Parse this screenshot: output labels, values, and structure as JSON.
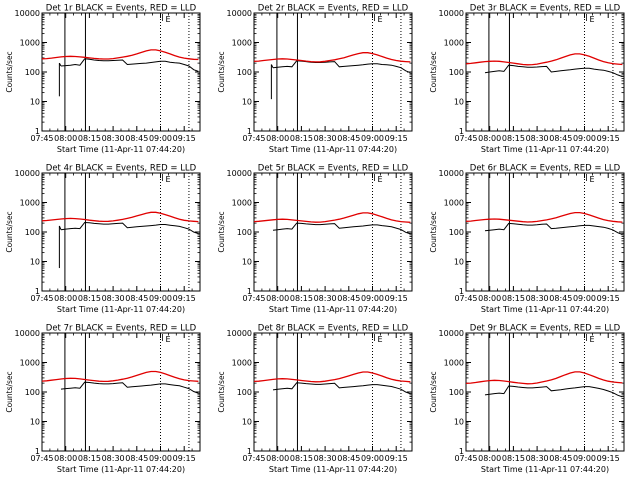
{
  "chart_data": {
    "type": "line",
    "layout": "3x3 grid of small multiples",
    "legend_note": "BLACK = Events, RED = LLD",
    "shared": {
      "xlabel": "Start Time (11-Apr-11 07:44:20)",
      "ylabel": "Counts/sec",
      "yscale": "log",
      "ylim": [
        1,
        10000
      ],
      "ytick_labels": [
        "1",
        "10",
        "100",
        "1000",
        "10000"
      ],
      "xlim_minutes_after_0745": [
        0,
        100
      ],
      "xtick_labels": [
        "07:45",
        "08:00",
        "08:15",
        "08:30",
        "08:45",
        "09:00",
        "09:15"
      ],
      "xtick_minutes_after_0745": [
        0,
        15,
        30,
        45,
        60,
        75,
        90
      ],
      "solid_vertical_lines_min": [
        14.5,
        27.5
      ],
      "dotted_vertical_lines_min": [
        75,
        93
      ],
      "small_marker_label": "E"
    },
    "series_x_minutes": [
      0,
      3,
      6,
      9,
      12,
      15,
      18,
      21,
      24,
      27,
      30,
      33,
      36,
      39,
      42,
      45,
      48,
      51,
      54,
      57,
      60,
      63,
      66,
      69,
      72,
      75,
      78,
      81,
      84,
      87,
      90,
      93,
      96,
      99
    ],
    "panels": [
      {
        "title": "Det 1r  BLACK = Events, RED = LLD",
        "series": [
          {
            "name": "Events",
            "color": "#000000",
            "gap_minutes": [
              11,
              14.5
            ],
            "values": [
              null,
              null,
              null,
              null,
              160,
              165,
              170,
              180,
              170,
              280,
              270,
              255,
              245,
              240,
              240,
              245,
              250,
              255,
              180,
              185,
              190,
              195,
              200,
              210,
              220,
              230,
              230,
              215,
              205,
              200,
              180,
              160,
              120,
              105
            ],
            "drop": {
              "minute": 11,
              "from": 200,
              "to": 15
            }
          },
          {
            "name": "LLD",
            "color": "#e00000",
            "values": [
              280,
              285,
              295,
              310,
              325,
              335,
              340,
              335,
              325,
              315,
              300,
              290,
              280,
              275,
              275,
              285,
              300,
              320,
              340,
              370,
              410,
              460,
              520,
              560,
              560,
              520,
              470,
              410,
              360,
              320,
              295,
              280,
              270,
              265
            ]
          }
        ]
      },
      {
        "title": "Det 2r  BLACK = Events, RED = LLD",
        "series": [
          {
            "name": "Events",
            "color": "#000000",
            "gap_minutes": [
              11,
              14.5
            ],
            "values": [
              null,
              null,
              null,
              null,
              140,
              145,
              150,
              155,
              150,
              240,
              235,
              225,
              215,
              210,
              210,
              215,
              220,
              225,
              150,
              155,
              160,
              165,
              170,
              175,
              185,
              190,
              190,
              180,
              175,
              170,
              155,
              140,
              110,
              95
            ],
            "drop": {
              "minute": 11,
              "from": 180,
              "to": 12
            }
          },
          {
            "name": "LLD",
            "color": "#e00000",
            "values": [
              230,
              235,
              245,
              255,
              265,
              275,
              280,
              275,
              265,
              255,
              245,
              235,
              225,
              220,
              222,
              230,
              245,
              260,
              280,
              305,
              340,
              380,
              420,
              450,
              450,
              420,
              380,
              335,
              295,
              265,
              245,
              232,
              225,
              220
            ]
          }
        ]
      },
      {
        "title": "Det 3r  BLACK = Events, RED = LLD",
        "series": [
          {
            "name": "Events",
            "color": "#000000",
            "gap_minutes": [
              11,
              14.5
            ],
            "values": [
              null,
              null,
              null,
              null,
              95,
              100,
              105,
              110,
              105,
              170,
              165,
              155,
              150,
              145,
              145,
              148,
              152,
              155,
              100,
              105,
              110,
              115,
              120,
              125,
              130,
              135,
              135,
              125,
              120,
              115,
              105,
              95,
              80,
              70
            ],
            "drop": null
          },
          {
            "name": "LLD",
            "color": "#e00000",
            "values": [
              190,
              195,
              205,
              215,
              225,
              230,
              235,
              230,
              220,
              210,
              200,
              190,
              180,
              175,
              178,
              185,
              200,
              215,
              235,
              260,
              295,
              335,
              380,
              410,
              410,
              380,
              340,
              295,
              255,
              225,
              205,
              192,
              185,
              180
            ]
          }
        ]
      },
      {
        "title": "Det 4r  BLACK = Events, RED = LLD",
        "series": [
          {
            "name": "Events",
            "color": "#000000",
            "gap_minutes": [
              11,
              14.5
            ],
            "values": [
              null,
              null,
              null,
              null,
              120,
              125,
              130,
              135,
              130,
              210,
              205,
              195,
              190,
              185,
              185,
              190,
              195,
              200,
              140,
              145,
              150,
              155,
              160,
              165,
              172,
              180,
              180,
              170,
              162,
              155,
              140,
              125,
              100,
              88
            ],
            "drop": {
              "minute": 11,
              "from": 160,
              "to": 6
            }
          },
          {
            "name": "LLD",
            "color": "#e00000",
            "values": [
              240,
              245,
              255,
              265,
              275,
              285,
              290,
              285,
              275,
              265,
              252,
              242,
              232,
              228,
              230,
              238,
              252,
              268,
              288,
              315,
              350,
              390,
              435,
              465,
              465,
              435,
              390,
              345,
              305,
              272,
              250,
              238,
              230,
              225
            ]
          }
        ]
      },
      {
        "title": "Det 5r  BLACK = Events, RED = LLD",
        "series": [
          {
            "name": "Events",
            "color": "#000000",
            "gap_minutes": [
              11,
              14.5
            ],
            "values": [
              null,
              null,
              null,
              null,
              115,
              120,
              125,
              130,
              125,
              200,
              195,
              188,
              182,
              178,
              178,
              182,
              188,
              192,
              135,
              140,
              145,
              150,
              155,
              160,
              167,
              174,
              174,
              165,
              158,
              150,
              136,
              122,
              98,
              86
            ],
            "drop": null
          },
          {
            "name": "LLD",
            "color": "#e00000",
            "values": [
              225,
              230,
              240,
              250,
              260,
              268,
              272,
              268,
              258,
              248,
              238,
              228,
              220,
              215,
              217,
              225,
              238,
              253,
              272,
              298,
              332,
              372,
              415,
              445,
              445,
              415,
              372,
              328,
              288,
              258,
              238,
              226,
              218,
              213
            ]
          }
        ]
      },
      {
        "title": "Det 6r  BLACK = Events, RED = LLD",
        "series": [
          {
            "name": "Events",
            "color": "#000000",
            "gap_minutes": [
              11,
              14.5
            ],
            "values": [
              null,
              null,
              null,
              null,
              110,
              115,
              120,
              125,
              120,
              195,
              190,
              182,
              176,
              172,
              172,
              176,
              182,
              186,
              130,
              135,
              140,
              145,
              150,
              155,
              162,
              168,
              168,
              160,
              152,
              145,
              132,
              118,
              95,
              82
            ],
            "drop": null
          },
          {
            "name": "LLD",
            "color": "#e00000",
            "values": [
              230,
              235,
              245,
              255,
              265,
              272,
              276,
              272,
              262,
              252,
              242,
              232,
              224,
              219,
              221,
              229,
              243,
              258,
              278,
              305,
              340,
              380,
              425,
              455,
              455,
              425,
              380,
              335,
              295,
              264,
              243,
              230,
              222,
              217
            ]
          }
        ]
      },
      {
        "title": "Det 7r  BLACK = Events, RED = LLD",
        "series": [
          {
            "name": "Events",
            "color": "#000000",
            "gap_minutes": [
              11,
              14.5
            ],
            "values": [
              null,
              null,
              null,
              null,
              125,
              130,
              135,
              140,
              135,
              215,
              210,
              200,
              193,
              188,
              188,
              193,
              200,
              205,
              145,
              150,
              155,
              160,
              166,
              172,
              180,
              188,
              188,
              178,
              170,
              162,
              146,
              130,
              104,
              90
            ],
            "drop": null
          },
          {
            "name": "LLD",
            "color": "#e00000",
            "values": [
              235,
              240,
              252,
              264,
              276,
              286,
              292,
              288,
              278,
              266,
              254,
              243,
              233,
              228,
              230,
              239,
              254,
              272,
              294,
              325,
              365,
              410,
              460,
              495,
              495,
              460,
              410,
              360,
              318,
              282,
              258,
              244,
              236,
              230
            ]
          }
        ]
      },
      {
        "title": "Det 8r  BLACK = Events, RED = LLD",
        "series": [
          {
            "name": "Events",
            "color": "#000000",
            "gap_minutes": [
              11,
              14.5
            ],
            "values": [
              null,
              null,
              null,
              null,
              118,
              123,
              128,
              133,
              128,
              205,
              200,
              192,
              186,
              181,
              181,
              186,
              192,
              197,
              138,
              143,
              148,
              153,
              158,
              164,
              171,
              178,
              178,
              169,
              161,
              154,
              139,
              124,
              100,
              87
            ],
            "drop": null
          },
          {
            "name": "LLD",
            "color": "#e00000",
            "values": [
              228,
              233,
              244,
              256,
              268,
              277,
              282,
              278,
              268,
              257,
              246,
              236,
              227,
              222,
              224,
              233,
              247,
              264,
              285,
              314,
              352,
              395,
              442,
              475,
              475,
              442,
              395,
              348,
              306,
              272,
              249,
              236,
              228,
              222
            ]
          }
        ]
      },
      {
        "title": "Det 9r  BLACK = Events, RED = LLD",
        "series": [
          {
            "name": "Events",
            "color": "#000000",
            "gap_minutes": [
              11,
              14.5
            ],
            "values": [
              null,
              null,
              null,
              null,
              80,
              84,
              88,
              92,
              88,
              160,
              155,
              148,
              142,
              138,
              138,
              142,
              147,
              152,
              110,
              115,
              120,
              126,
              132,
              138,
              145,
              152,
              152,
              142,
              132,
              122,
              108,
              95,
              78,
              68
            ],
            "drop": null
          },
          {
            "name": "LLD",
            "color": "#e00000",
            "values": [
              195,
              200,
              210,
              222,
              234,
              244,
              250,
              246,
              236,
              225,
              214,
              204,
              195,
              190,
              193,
              202,
              218,
              236,
              258,
              290,
              335,
              385,
              440,
              480,
              480,
              440,
              385,
              335,
              290,
              255,
              232,
              218,
              210,
              204
            ]
          }
        ]
      }
    ]
  }
}
